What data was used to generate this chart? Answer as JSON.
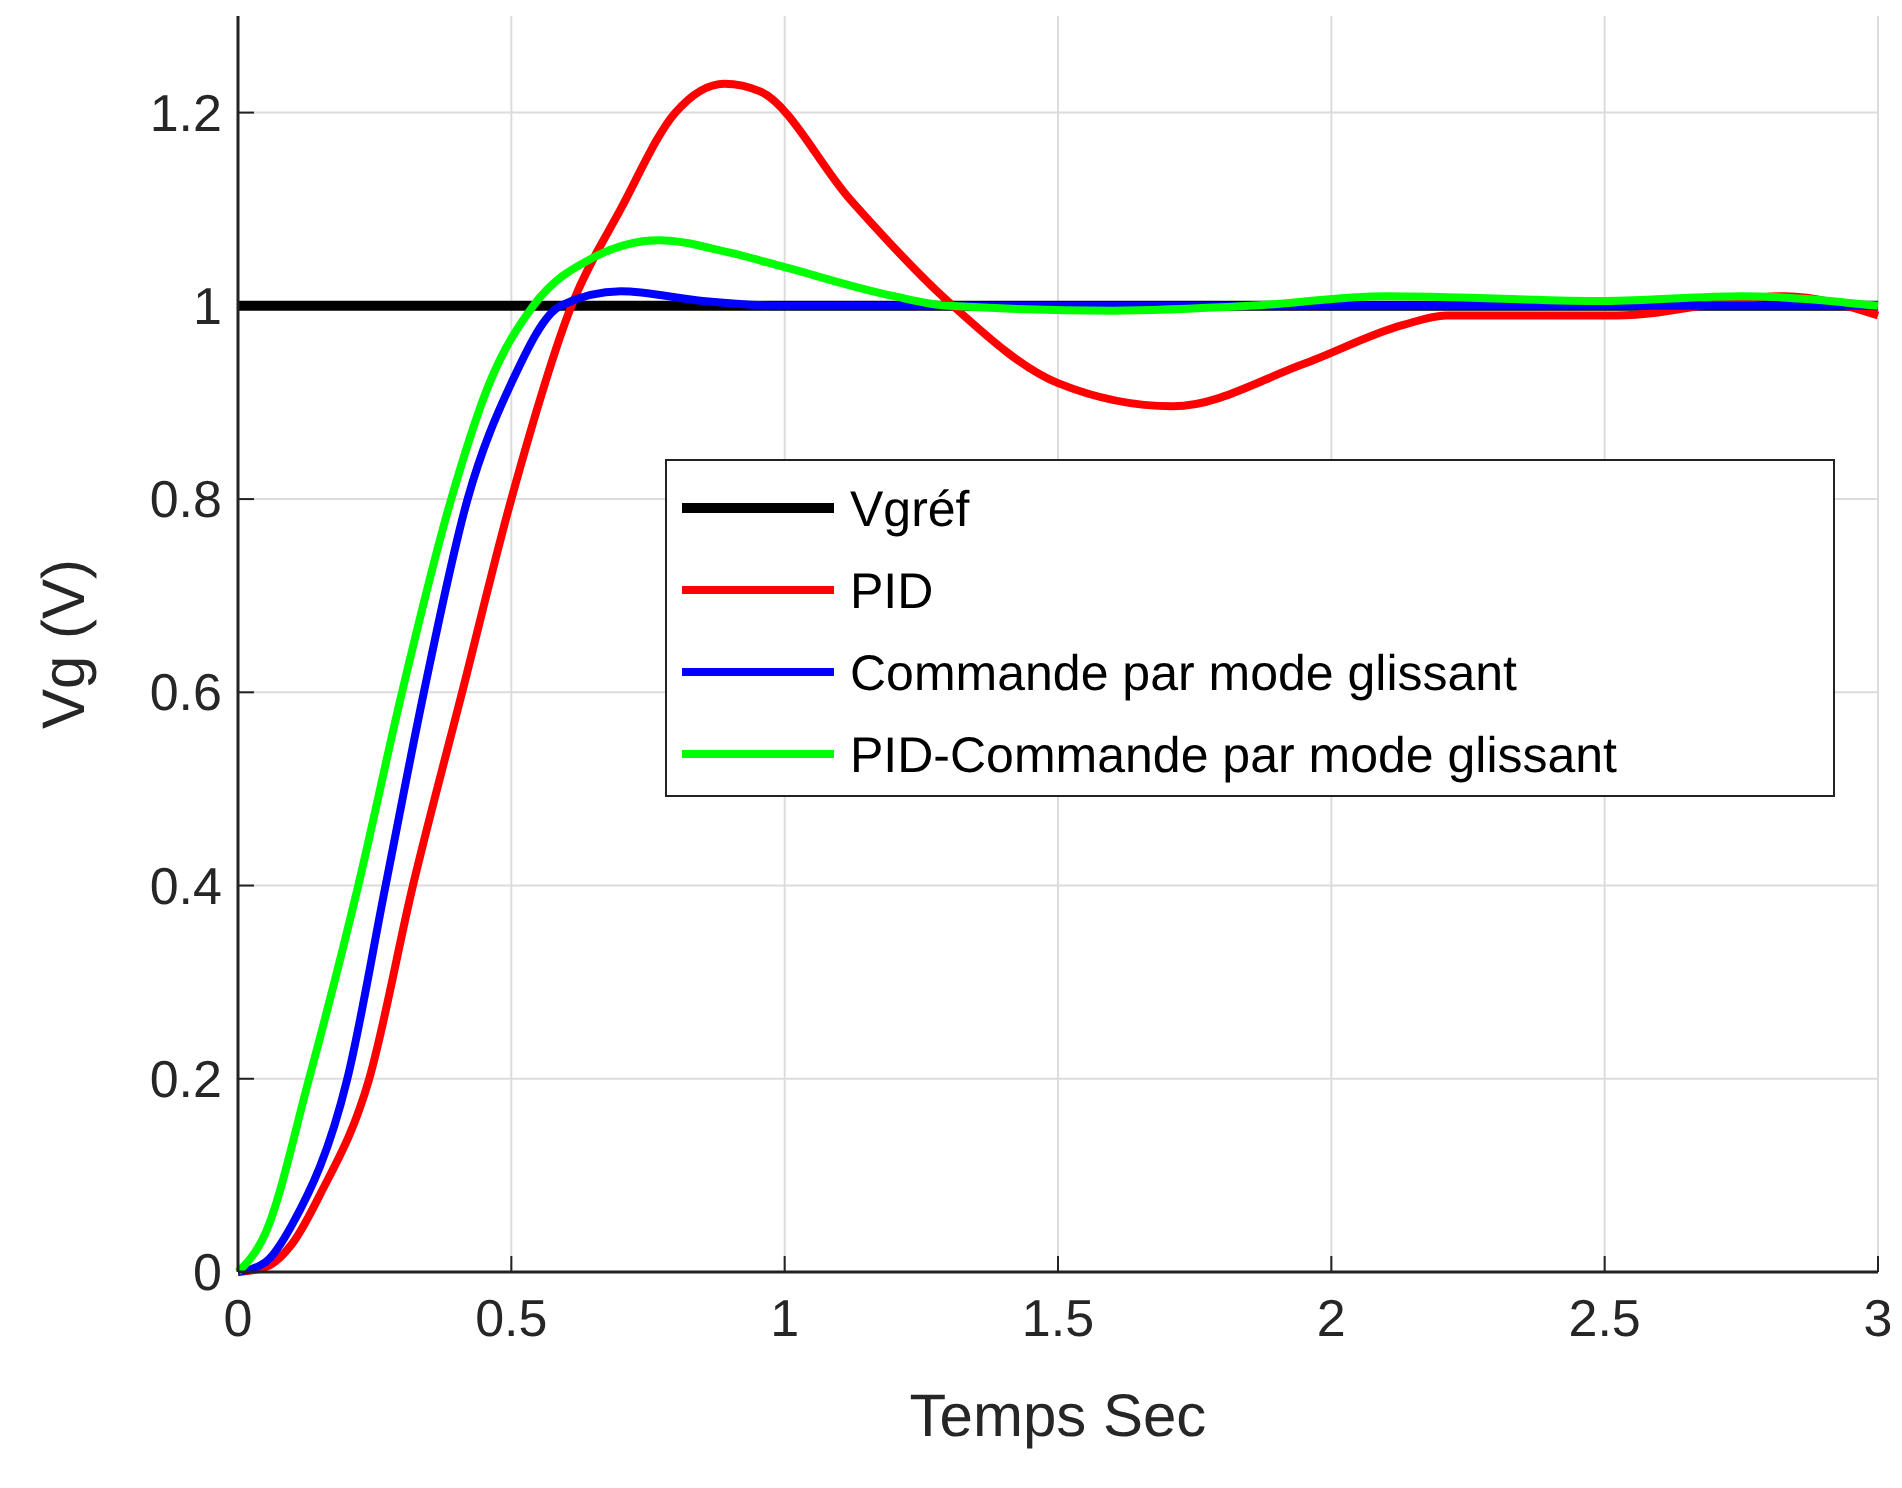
{
  "chart_data": {
    "type": "line",
    "xlabel": "Temps Sec",
    "ylabel": "Vg (V)",
    "xlim": [
      0,
      3
    ],
    "ylim": [
      0,
      1.3
    ],
    "xticks": [
      0,
      0.5,
      1,
      1.5,
      2,
      2.5,
      3
    ],
    "yticks": [
      0,
      0.2,
      0.4,
      0.6,
      0.8,
      1,
      1.2
    ],
    "grid": true,
    "legend": "right",
    "line_style": "solid",
    "series": [
      {
        "name": "Vgréf",
        "color": "#000000",
        "x": [
          0,
          3
        ],
        "values": [
          1,
          1
        ]
      },
      {
        "name": "PID",
        "color": "#ff0000",
        "x": [
          0,
          0.05,
          0.1,
          0.15,
          0.24,
          0.32,
          0.41,
          0.5,
          0.61,
          0.7,
          0.8,
          0.89,
          0.955,
          1.12,
          1.3,
          1.5,
          1.71,
          1.95,
          2.13,
          2.21,
          2.52,
          2.83,
          3
        ],
        "values": [
          0,
          0.005,
          0.03,
          0.08,
          0.2,
          0.4,
          0.6,
          0.8,
          1,
          1.1,
          1.2,
          1.23,
          1.222,
          1.11,
          1.004,
          0.92,
          0.896,
          0.94,
          0.98,
          0.99,
          0.99,
          1.01,
          0.99
        ]
      },
      {
        "name": "Commande par mode glissant",
        "color": "#0000ff",
        "x": [
          0,
          0.05,
          0.1,
          0.2,
          0.27,
          0.34,
          0.42,
          0.5,
          0.59,
          0.7,
          0.85,
          1,
          1.5,
          2,
          2.5,
          3
        ],
        "values": [
          0,
          0.01,
          0.05,
          0.2,
          0.4,
          0.6,
          0.8,
          0.92,
          1,
          1.015,
          1.005,
          1,
          1,
          1,
          1,
          1
        ]
      },
      {
        "name": "PID-Commande par mode glissant",
        "color": "#00ff00",
        "x": [
          0,
          0.05,
          0.13,
          0.22,
          0.3,
          0.39,
          0.46,
          0.54,
          0.65,
          0.77,
          0.9,
          1,
          1.2,
          1.3,
          1.6,
          1.85,
          2.1,
          2.5,
          2.75,
          3
        ],
        "values": [
          0,
          0.04,
          0.2,
          0.4,
          0.6,
          0.8,
          0.92,
          1,
          1.05,
          1.068,
          1.055,
          1.04,
          1.01,
          1,
          0.995,
          1,
          1.01,
          1.005,
          1.01,
          1
        ]
      }
    ]
  }
}
